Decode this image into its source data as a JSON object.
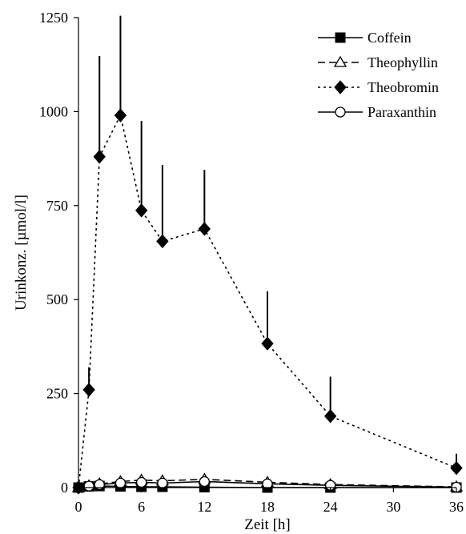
{
  "chart_data": {
    "type": "line",
    "title": "",
    "xlabel": "Zeit [h]",
    "ylabel": "Urinkonz. [µmol/l]",
    "xlim": [
      0,
      36
    ],
    "ylim": [
      0,
      1250
    ],
    "xticks": [
      0,
      6,
      12,
      18,
      24,
      30,
      36
    ],
    "yticks": [
      0,
      250,
      500,
      750,
      1000,
      1250
    ],
    "grid": false,
    "legend_position": "top-right",
    "x": [
      0,
      1,
      2,
      4,
      6,
      8,
      12,
      18,
      24,
      36
    ],
    "series": [
      {
        "name": "Coffein",
        "line_style": "solid",
        "marker": "square-filled",
        "values": [
          0,
          3,
          4,
          3,
          2,
          2,
          1,
          0,
          0,
          0
        ],
        "error_upper": [
          0,
          0,
          0,
          0,
          0,
          0,
          0,
          0,
          0,
          0
        ]
      },
      {
        "name": "Theophyllin",
        "line_style": "dashed",
        "marker": "triangle-open",
        "values": [
          0,
          5,
          10,
          16,
          20,
          18,
          22,
          14,
          8,
          2
        ],
        "error_upper": [
          0,
          0,
          0,
          0,
          0,
          0,
          0,
          0,
          0,
          0
        ]
      },
      {
        "name": "Theobromin",
        "line_style": "dotted",
        "marker": "diamond-filled",
        "values": [
          0,
          260,
          880,
          990,
          737,
          655,
          688,
          383,
          190,
          52
        ],
        "error_upper": [
          0,
          320,
          1148,
          1255,
          975,
          858,
          845,
          522,
          295,
          90
        ]
      },
      {
        "name": "Paraxanthin",
        "line_style": "solid",
        "marker": "circle-open",
        "values": [
          0,
          4,
          8,
          12,
          14,
          12,
          16,
          10,
          6,
          1
        ],
        "error_upper": [
          0,
          0,
          0,
          0,
          0,
          0,
          0,
          0,
          0,
          0
        ]
      }
    ],
    "colors": {
      "lines": "#000000",
      "background": "#ffffff"
    }
  }
}
